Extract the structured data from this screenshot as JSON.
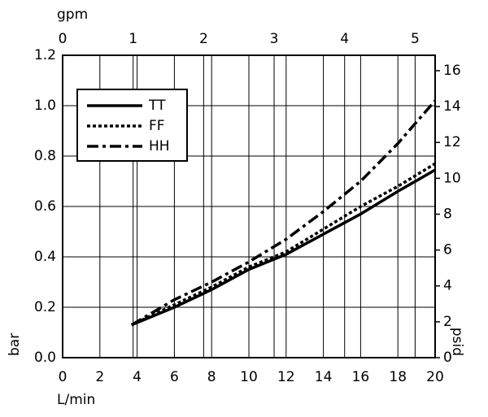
{
  "chart_data": {
    "type": "line",
    "xlabel": "L/min",
    "ylabel": "bar",
    "x2label": "gpm",
    "y2label": "psid",
    "x": [
      3.7,
      6,
      8,
      10,
      12,
      14,
      16,
      18,
      20
    ],
    "series": [
      {
        "name": "TT",
        "color": "#000000",
        "style": "solid",
        "values": [
          0.13,
          0.2,
          0.27,
          0.35,
          0.41,
          0.49,
          0.57,
          0.66,
          0.745
        ]
      },
      {
        "name": "FF",
        "color": "#000000",
        "style": "dotted",
        "values": [
          0.13,
          0.21,
          0.28,
          0.36,
          0.42,
          0.51,
          0.6,
          0.68,
          0.77
        ]
      },
      {
        "name": "HH",
        "color": "#000000",
        "style": "dashdot",
        "values": [
          0.13,
          0.23,
          0.3,
          0.38,
          0.47,
          0.58,
          0.7,
          0.85,
          1.02
        ]
      }
    ],
    "xlim": [
      0,
      20
    ],
    "xticks": [
      0,
      2,
      4,
      6,
      8,
      10,
      12,
      14,
      16,
      18,
      20
    ],
    "ylim": [
      0,
      1.2
    ],
    "yticks": [
      {
        "value": 0,
        "label": "0.0"
      },
      {
        "value": 0.2,
        "label": "0.2"
      },
      {
        "value": 0.4,
        "label": "0.4"
      },
      {
        "value": 0.6,
        "label": "0.6"
      },
      {
        "value": 0.8,
        "label": "0.8"
      },
      {
        "value": 1,
        "label": "1.0"
      },
      {
        "value": 1.2,
        "label": "1.2"
      }
    ],
    "x2lim": [
      0,
      5.284
    ],
    "x2ticks": [
      0,
      1,
      2,
      3,
      4,
      5
    ],
    "y2lim": [
      0,
      16.86
    ],
    "y2ticks": [
      0,
      2,
      4,
      6,
      8,
      10,
      12,
      14,
      16
    ],
    "grid": true,
    "legend": "upper-left"
  }
}
